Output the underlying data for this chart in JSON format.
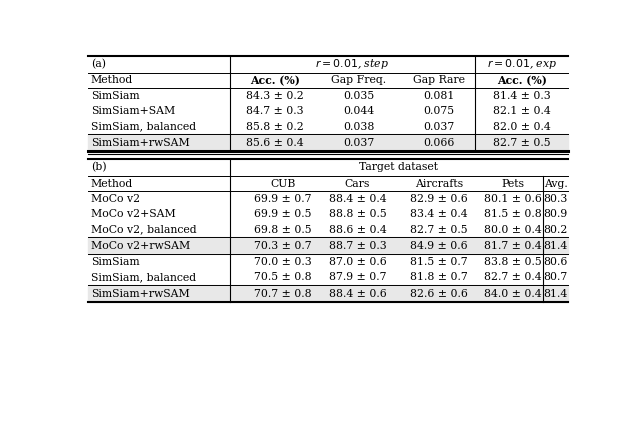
{
  "fig_width": 6.4,
  "fig_height": 4.32,
  "bg_color": "#ffffff",
  "section_a": {
    "label": "(a)",
    "header_step": "r = 0.01, step",
    "header_exp": "r = 0.01, exp",
    "col_headers": [
      "Method",
      "Acc. (%)",
      "Gap Freq.",
      "Gap Rare",
      "Acc. (%)"
    ],
    "rows_normal": [
      [
        "SimSiam",
        "84.3 ± 0.2",
        "0.035",
        "0.081",
        "81.4 ± 0.3"
      ],
      [
        "SimSiam+SAM",
        "84.7 ± 0.3",
        "0.044",
        "0.075",
        "82.1 ± 0.4"
      ],
      [
        "SimSiam, balanced",
        "85.8 ± 0.2",
        "0.038",
        "0.037",
        "82.0 ± 0.4"
      ]
    ],
    "row_highlight": [
      "SimSiam+rwSAM",
      "85.6 ± 0.4",
      "0.037",
      "0.066",
      "82.7 ± 0.5"
    ]
  },
  "section_b": {
    "label": "(b)",
    "header_span": "Target dataset",
    "col_headers": [
      "Method",
      "CUB",
      "Cars",
      "Aircrafts",
      "Pets",
      "Avg."
    ],
    "groups": [
      {
        "rows": [
          [
            "MoCo v2",
            "69.9 ± 0.7",
            "88.4 ± 0.4",
            "82.9 ± 0.6",
            "80.1 ± 0.6",
            "80.3"
          ],
          [
            "MoCo v2+SAM",
            "69.9 ± 0.5",
            "88.8 ± 0.5",
            "83.4 ± 0.4",
            "81.5 ± 0.8",
            "80.9"
          ],
          [
            "MoCo v2, balanced",
            "69.8 ± 0.5",
            "88.6 ± 0.4",
            "82.7 ± 0.5",
            "80.0 ± 0.4",
            "80.2"
          ]
        ],
        "highlight": [
          "MoCo v2+rwSAM",
          "70.3 ± 0.7",
          "88.7 ± 0.3",
          "84.9 ± 0.6",
          "81.7 ± 0.4",
          "81.4"
        ]
      },
      {
        "rows": [
          [
            "SimSiam",
            "70.0 ± 0.3",
            "87.0 ± 0.6",
            "81.5 ± 0.7",
            "83.8 ± 0.5",
            "80.6"
          ],
          [
            "SimSiam, balanced",
            "70.5 ± 0.8",
            "87.9 ± 0.7",
            "81.8 ± 0.7",
            "82.7 ± 0.4",
            "80.7"
          ]
        ],
        "highlight": [
          "SimSiam+rwSAM",
          "70.7 ± 0.8",
          "88.4 ± 0.6",
          "82.6 ± 0.6",
          "84.0 ± 0.4",
          "81.4"
        ]
      }
    ]
  },
  "highlight_bg": "#e8e8e8",
  "font_size": 7.8
}
